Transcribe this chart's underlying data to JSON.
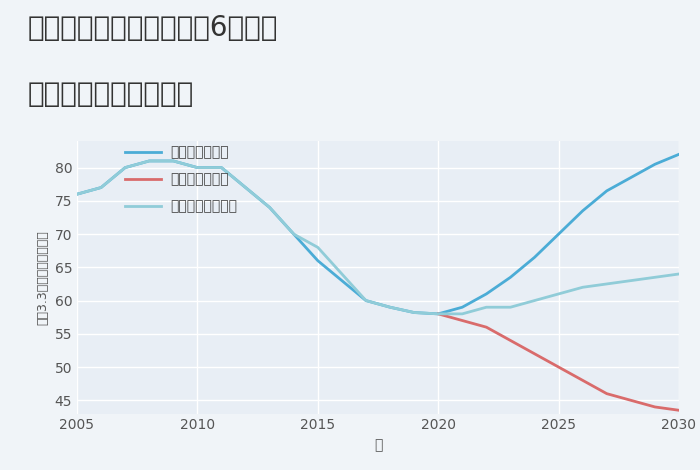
{
  "title_line1": "三重県名張市桔梗が丘西6番町の",
  "title_line2": "中古戸建ての価格推移",
  "xlabel": "年",
  "ylabel_parts": [
    "坪（3.3㎡）単価（万円）"
  ],
  "background_color": "#f0f4f8",
  "plot_bg_color": "#e8eef5",
  "grid_color": "#ffffff",
  "xlim": [
    2005,
    2030
  ],
  "ylim": [
    43,
    84
  ],
  "yticks": [
    45,
    50,
    55,
    60,
    65,
    70,
    75,
    80
  ],
  "xticks": [
    2005,
    2010,
    2015,
    2020,
    2025,
    2030
  ],
  "good_scenario": {
    "label": "グッドシナリオ",
    "color": "#4bacd6",
    "x": [
      2005,
      2006,
      2007,
      2008,
      2009,
      2010,
      2011,
      2012,
      2013,
      2014,
      2015,
      2016,
      2017,
      2018,
      2019,
      2020,
      2021,
      2022,
      2023,
      2024,
      2025,
      2026,
      2027,
      2028,
      2029,
      2030
    ],
    "y": [
      76.0,
      77.0,
      80.0,
      81.0,
      81.0,
      80.0,
      80.0,
      77.0,
      74.0,
      70.0,
      66.0,
      63.0,
      60.0,
      59.0,
      58.2,
      58.0,
      59.0,
      61.0,
      63.5,
      66.5,
      70.0,
      73.5,
      76.5,
      78.5,
      80.5,
      82.0
    ]
  },
  "bad_scenario": {
    "label": "バッドシナリオ",
    "color": "#d96b6b",
    "x": [
      2020,
      2021,
      2022,
      2023,
      2024,
      2025,
      2026,
      2027,
      2028,
      2029,
      2030
    ],
    "y": [
      58.0,
      57.0,
      56.0,
      54.0,
      52.0,
      50.0,
      48.0,
      46.0,
      45.0,
      44.0,
      43.5
    ]
  },
  "normal_scenario": {
    "label": "ノーマルシナリオ",
    "color": "#90ccd8",
    "x": [
      2005,
      2006,
      2007,
      2008,
      2009,
      2010,
      2011,
      2012,
      2013,
      2014,
      2015,
      2016,
      2017,
      2018,
      2019,
      2020,
      2021,
      2022,
      2023,
      2024,
      2025,
      2026,
      2027,
      2028,
      2029,
      2030
    ],
    "y": [
      76.0,
      77.0,
      80.0,
      81.0,
      81.0,
      80.0,
      80.0,
      77.0,
      74.0,
      70.0,
      68.0,
      64.0,
      60.0,
      59.0,
      58.2,
      58.0,
      58.0,
      59.0,
      59.0,
      60.0,
      61.0,
      62.0,
      62.5,
      63.0,
      63.5,
      64.0
    ]
  },
  "title_fontsize": 20,
  "axis_fontsize": 10,
  "tick_fontsize": 10,
  "legend_fontsize": 10,
  "line_width": 2.0
}
